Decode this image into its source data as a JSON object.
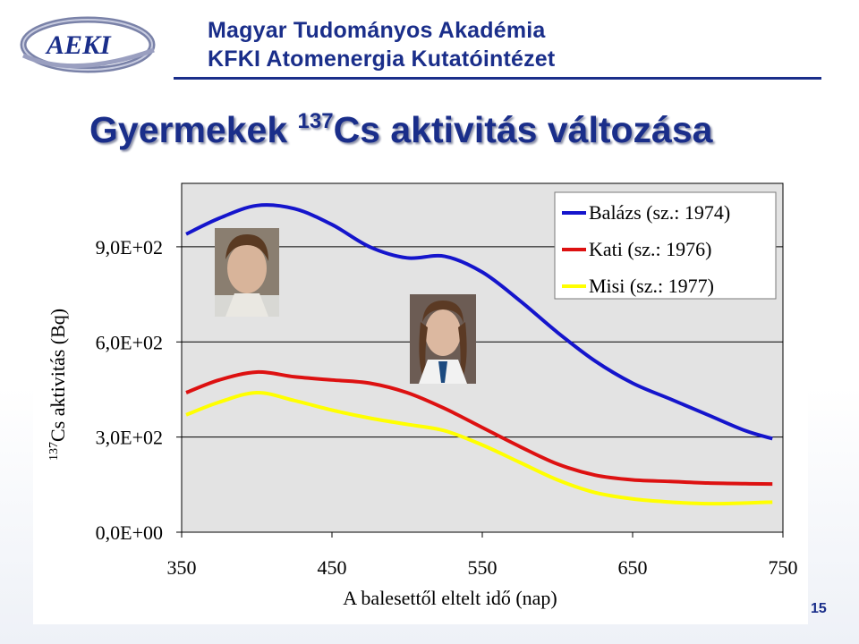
{
  "header": {
    "logo_text": "AEKI",
    "org_line1": "Magyar Tudományos Akadémia",
    "org_line2": "KFKI Atomenergia Kutatóintézet"
  },
  "slide": {
    "title_pre": "Gyermekek ",
    "title_sup": "137",
    "title_post": "Cs aktivitás változása",
    "page_number": "15"
  },
  "chart_data": {
    "type": "line",
    "title": "",
    "xlabel": "A balesettől eltelt idő (nap)",
    "ylabel_sup": "137",
    "ylabel": "Cs  aktivitás (Bq)",
    "xlim": [
      350,
      750
    ],
    "ylim": [
      0,
      1100
    ],
    "xticks": [
      350,
      450,
      550,
      650,
      750
    ],
    "xtick_labels": [
      "350",
      "450",
      "550",
      "650",
      "750"
    ],
    "yticks": [
      0,
      300,
      600,
      900
    ],
    "ytick_labels": [
      "0,0E+00",
      "3,0E+02",
      "6,0E+02",
      "9,0E+02"
    ],
    "grid": true,
    "legend_position": "top-right",
    "series": [
      {
        "name": "Balázs (sz.: 1974)",
        "color": "#1515cc",
        "x": [
          353,
          375,
          400,
          425,
          450,
          475,
          500,
          525,
          550,
          575,
          600,
          625,
          650,
          675,
          700,
          725,
          743
        ],
        "y": [
          940,
          990,
          1030,
          1020,
          970,
          900,
          865,
          870,
          820,
          730,
          630,
          540,
          470,
          420,
          370,
          320,
          295
        ]
      },
      {
        "name": "Kati (sz.: 1976)",
        "color": "#dd1111",
        "x": [
          353,
          375,
          400,
          425,
          450,
          475,
          500,
          525,
          550,
          575,
          600,
          625,
          650,
          675,
          700,
          725,
          743
        ],
        "y": [
          440,
          480,
          505,
          490,
          480,
          470,
          440,
          390,
          330,
          270,
          215,
          180,
          165,
          160,
          155,
          153,
          152
        ]
      },
      {
        "name": "Misi (sz.: 1977)",
        "color": "#ffff00",
        "x": [
          353,
          375,
          400,
          425,
          450,
          475,
          500,
          525,
          550,
          575,
          600,
          625,
          650,
          675,
          700,
          725,
          743
        ],
        "y": [
          370,
          410,
          440,
          415,
          385,
          360,
          340,
          320,
          275,
          220,
          165,
          125,
          105,
          95,
          90,
          92,
          95
        ]
      }
    ]
  }
}
